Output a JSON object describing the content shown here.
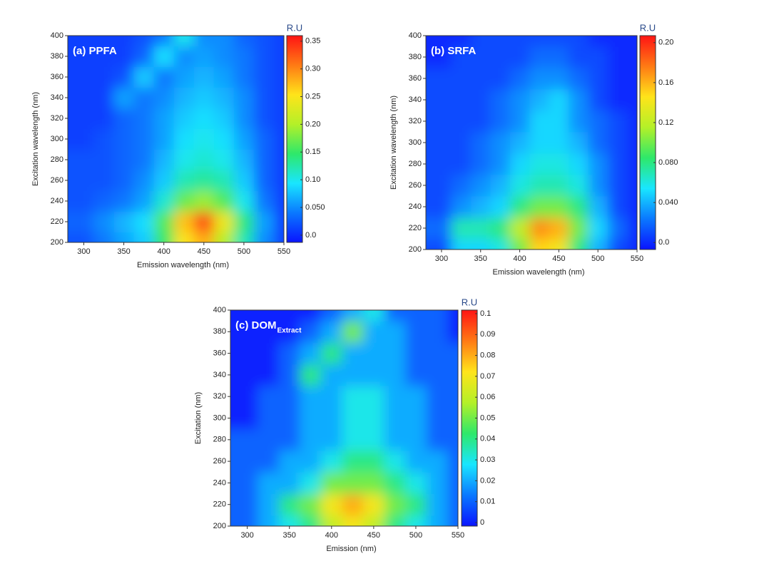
{
  "chart_data": [
    {
      "type": "contour",
      "label": "(a) PPFA",
      "xlabel": "Emission wavelength (nm)",
      "ylabel": "Excitation wavelength (nm)",
      "colorbar_title": "R.U",
      "xlim": [
        280,
        550
      ],
      "ylim": [
        200,
        400
      ],
      "xticks": [
        300,
        350,
        400,
        450,
        500,
        550
      ],
      "yticks": [
        200,
        220,
        240,
        260,
        280,
        300,
        320,
        340,
        360,
        380,
        400
      ],
      "clim": [
        -0.013,
        0.36
      ],
      "cticks": [
        {
          "value": 0,
          "label": "0.0"
        },
        {
          "value": 0.05,
          "label": "0.050"
        },
        {
          "value": 0.1,
          "label": "0.10"
        },
        0.15,
        {
          "value": 0.2,
          "label": "0.20"
        },
        0.25,
        {
          "value": 0.3,
          "label": "0.30"
        },
        0.35
      ],
      "colormap": [
        "#0a14ff",
        "#0a78ff",
        "#19e6ff",
        "#2ee86a",
        "#b4f028",
        "#ffe41a",
        "#ff7a14",
        "#ff1414"
      ],
      "x": [
        300,
        325,
        350,
        375,
        400,
        425,
        450,
        475,
        500,
        525,
        550
      ],
      "y": [
        200,
        220,
        240,
        260,
        280,
        300,
        320,
        340,
        360,
        380,
        400
      ],
      "z": [
        [
          0.02,
          0.04,
          0.06,
          0.08,
          0.15,
          0.25,
          0.28,
          0.2,
          0.12,
          0.05,
          0.01
        ],
        [
          0.03,
          0.05,
          0.07,
          0.09,
          0.16,
          0.27,
          0.33,
          0.24,
          0.14,
          0.06,
          0.01
        ],
        [
          0.02,
          0.03,
          0.04,
          0.06,
          0.11,
          0.17,
          0.19,
          0.16,
          0.1,
          0.04,
          0.01
        ],
        [
          0.02,
          0.02,
          0.03,
          0.05,
          0.08,
          0.12,
          0.13,
          0.12,
          0.08,
          0.03,
          0.01
        ],
        [
          0.02,
          0.02,
          0.03,
          0.04,
          0.07,
          0.1,
          0.11,
          0.1,
          0.07,
          0.03,
          0.01
        ],
        [
          0.01,
          0.02,
          0.03,
          0.04,
          0.06,
          0.09,
          0.1,
          0.09,
          0.06,
          0.03,
          0.01
        ],
        [
          0.01,
          0.01,
          0.03,
          0.04,
          0.06,
          0.08,
          0.09,
          0.08,
          0.05,
          0.02,
          0.01
        ],
        [
          0.01,
          0.01,
          0.06,
          0.04,
          0.05,
          0.07,
          0.08,
          0.07,
          0.05,
          0.02,
          0.01
        ],
        [
          0.01,
          0.01,
          0.02,
          0.08,
          0.04,
          0.06,
          0.07,
          0.06,
          0.04,
          0.02,
          0.01
        ],
        [
          0.01,
          0.01,
          0.01,
          0.03,
          0.09,
          0.05,
          0.06,
          0.05,
          0.04,
          0.02,
          0.01
        ],
        [
          0.01,
          0.01,
          0.01,
          0.02,
          0.04,
          0.1,
          0.05,
          0.05,
          0.03,
          0.02,
          0.01
        ]
      ]
    },
    {
      "type": "contour",
      "label": "(b) SRFA",
      "xlabel": "Emission wavelength (nm)",
      "ylabel": "Excitation wavelength (nm)",
      "colorbar_title": "R.U",
      "xlim": [
        280,
        550
      ],
      "ylim": [
        200,
        400
      ],
      "xticks": [
        300,
        350,
        400,
        450,
        500,
        550
      ],
      "yticks": [
        200,
        220,
        240,
        260,
        280,
        300,
        320,
        340,
        360,
        380,
        400
      ],
      "clim": [
        -0.007,
        0.207
      ],
      "cticks": [
        {
          "value": 0,
          "label": "0.0"
        },
        {
          "value": 0.04,
          "label": "0.040"
        },
        {
          "value": 0.08,
          "label": "0.080"
        },
        0.12,
        0.16,
        {
          "value": 0.2,
          "label": "0.20"
        }
      ],
      "colormap": [
        "#0a14ff",
        "#0a78ff",
        "#19e6ff",
        "#2ee86a",
        "#b4f028",
        "#ffe41a",
        "#ff7a14",
        "#ff1414"
      ],
      "x": [
        300,
        325,
        350,
        375,
        400,
        425,
        450,
        475,
        500,
        525,
        550
      ],
      "y": [
        200,
        220,
        240,
        260,
        280,
        300,
        320,
        340,
        360,
        380,
        400
      ],
      "z": [
        [
          0.01,
          0.05,
          0.05,
          0.06,
          0.1,
          0.15,
          0.14,
          0.08,
          0.04,
          0.01,
          0
        ],
        [
          0.02,
          0.07,
          0.07,
          0.08,
          0.12,
          0.17,
          0.16,
          0.1,
          0.05,
          0.02,
          0
        ],
        [
          0.01,
          0.03,
          0.04,
          0.05,
          0.08,
          0.1,
          0.1,
          0.08,
          0.04,
          0.01,
          0
        ],
        [
          0.01,
          0.02,
          0.03,
          0.04,
          0.06,
          0.07,
          0.07,
          0.06,
          0.03,
          0.01,
          0
        ],
        [
          0.01,
          0.01,
          0.02,
          0.03,
          0.05,
          0.06,
          0.06,
          0.05,
          0.03,
          0.01,
          0
        ],
        [
          0.01,
          0.01,
          0.02,
          0.03,
          0.04,
          0.05,
          0.05,
          0.04,
          0.02,
          0.01,
          0
        ],
        [
          0.01,
          0.01,
          0.01,
          0.02,
          0.03,
          0.05,
          0.05,
          0.03,
          0.02,
          0.01,
          0
        ],
        [
          0.01,
          0.01,
          0.01,
          0.02,
          0.03,
          0.04,
          0.05,
          0.03,
          0.01,
          0,
          0
        ],
        [
          0.01,
          0.01,
          0.01,
          0.01,
          0.02,
          0.03,
          0.03,
          0.02,
          0.01,
          0,
          0
        ],
        [
          0,
          0.01,
          0.01,
          0.01,
          0.01,
          0.02,
          0.02,
          0.01,
          0.01,
          0,
          0
        ],
        [
          0,
          0,
          0.01,
          0.01,
          0.01,
          0.01,
          0.01,
          0.01,
          0,
          0,
          0
        ]
      ]
    },
    {
      "type": "contour",
      "label": "(c) DOM",
      "label_sub": "Extract",
      "xlabel": "Emission (nm)",
      "ylabel": "Excitation (nm)",
      "colorbar_title": "R.U",
      "xlim": [
        280,
        550
      ],
      "ylim": [
        200,
        400
      ],
      "xticks": [
        300,
        350,
        400,
        450,
        500,
        550
      ],
      "yticks": [
        200,
        220,
        240,
        260,
        280,
        300,
        320,
        340,
        360,
        380,
        400
      ],
      "clim": [
        -0.0017,
        0.1017
      ],
      "cticks": [
        0,
        0.01,
        0.02,
        0.03,
        0.04,
        0.05,
        0.06,
        0.07,
        0.08,
        0.09,
        0.1
      ],
      "colormap": [
        "#0a14ff",
        "#0a78ff",
        "#19e6ff",
        "#2ee86a",
        "#b4f028",
        "#ffe41a",
        "#ff7a14",
        "#ff1414"
      ],
      "x": [
        300,
        325,
        350,
        375,
        400,
        425,
        450,
        475,
        500,
        525,
        550
      ],
      "y": [
        200,
        220,
        240,
        260,
        280,
        300,
        320,
        340,
        360,
        380,
        400
      ],
      "z": [
        [
          0.01,
          0.02,
          0.03,
          0.04,
          0.06,
          0.07,
          0.06,
          0.04,
          0.03,
          0.02,
          0.01
        ],
        [
          0.01,
          0.02,
          0.04,
          0.05,
          0.07,
          0.08,
          0.07,
          0.05,
          0.04,
          0.02,
          0.01
        ],
        [
          0.01,
          0.02,
          0.02,
          0.03,
          0.05,
          0.05,
          0.05,
          0.04,
          0.03,
          0.02,
          0.01
        ],
        [
          0.01,
          0.01,
          0.02,
          0.02,
          0.03,
          0.04,
          0.04,
          0.03,
          0.02,
          0.02,
          0.01
        ],
        [
          0.01,
          0.01,
          0.01,
          0.02,
          0.02,
          0.03,
          0.03,
          0.02,
          0.02,
          0.01,
          0.01
        ],
        [
          0,
          0.01,
          0.01,
          0.02,
          0.02,
          0.03,
          0.03,
          0.02,
          0.02,
          0.01,
          0.01
        ],
        [
          0,
          0.01,
          0.01,
          0.02,
          0.02,
          0.03,
          0.03,
          0.02,
          0.02,
          0.01,
          0.01
        ],
        [
          0,
          0,
          0.01,
          0.04,
          0.02,
          0.02,
          0.02,
          0.02,
          0.01,
          0.01,
          0.01
        ],
        [
          0,
          0,
          0.01,
          0.02,
          0.04,
          0.02,
          0.02,
          0.02,
          0.01,
          0.01,
          0.01
        ],
        [
          0,
          0,
          0,
          0.01,
          0.02,
          0.05,
          0.02,
          0.02,
          0.01,
          0.01,
          0
        ],
        [
          0,
          0,
          0,
          0,
          0.01,
          0.02,
          0.03,
          0.01,
          0.01,
          0.01,
          0
        ]
      ]
    }
  ]
}
